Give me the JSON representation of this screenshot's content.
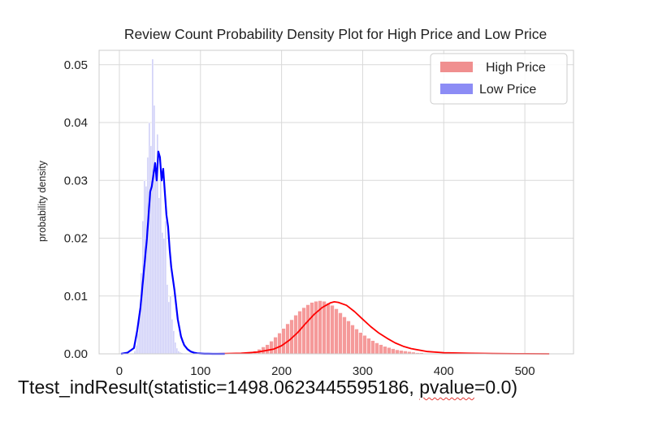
{
  "chart_data": {
    "type": "histogram-density",
    "title": "Review Count Probability Density Plot for High Price and Low Price",
    "xlabel": "",
    "ylabel": "probability density",
    "xlim": [
      -25,
      560
    ],
    "ylim": [
      0,
      0.0525
    ],
    "xticks": [
      0,
      100,
      200,
      300,
      400,
      500
    ],
    "yticks": [
      0.0,
      0.01,
      0.02,
      0.03,
      0.04,
      0.05
    ],
    "ytick_labels": [
      "0.00",
      "0.01",
      "0.02",
      "0.03",
      "0.04",
      "0.05"
    ],
    "grid": true,
    "legend_position": "top-right",
    "series": [
      {
        "name": "High Price",
        "color": "#ff0000",
        "bar_color": "#f59a9a",
        "bins": {
          "start": 120,
          "width": 5
        },
        "bar_heights": [
          5e-05,
          5e-05,
          0.0001,
          0.0001,
          0.0001,
          0.0001,
          0.0002,
          0.0003,
          0.0003,
          0.0005,
          0.0008,
          0.0012,
          0.0016,
          0.0022,
          0.0029,
          0.0036,
          0.0044,
          0.0052,
          0.0059,
          0.0067,
          0.0074,
          0.008,
          0.0085,
          0.0089,
          0.0091,
          0.0092,
          0.0091,
          0.0088,
          0.0084,
          0.0078,
          0.0071,
          0.0064,
          0.0057,
          0.005,
          0.0043,
          0.0037,
          0.0032,
          0.0027,
          0.0023,
          0.0019,
          0.0016,
          0.0013,
          0.0011,
          0.0009,
          0.0007,
          0.0006,
          0.0005,
          0.0004,
          0.0003,
          0.0002,
          0.0002,
          0.0001,
          0.0001,
          0.0001,
          8e-05,
          6e-05,
          5e-05,
          5e-05,
          4e-05,
          3e-05,
          3e-05,
          2e-05,
          2e-05,
          2e-05,
          2e-05,
          2e-05,
          2e-05,
          2e-05,
          2e-05,
          2e-05,
          2e-05,
          2e-05,
          1e-05,
          1e-05,
          1e-05,
          1e-05,
          1e-05,
          1e-05,
          1e-05,
          1e-05,
          1e-05,
          1e-05
        ],
        "kde_x": [
          115,
          150,
          170,
          190,
          200,
          210,
          220,
          230,
          240,
          250,
          260,
          265,
          270,
          280,
          290,
          300,
          310,
          320,
          330,
          340,
          350,
          360,
          380,
          400,
          430,
          460,
          500,
          530
        ],
        "kde_y": [
          0.0,
          0.0001,
          0.0003,
          0.0008,
          0.0014,
          0.0024,
          0.0037,
          0.0053,
          0.0068,
          0.008,
          0.0088,
          0.009,
          0.0089,
          0.0084,
          0.0073,
          0.006,
          0.0047,
          0.0036,
          0.0027,
          0.0019,
          0.0013,
          0.0009,
          0.0004,
          0.0002,
          0.0001,
          4e-05,
          1e-05,
          0.0
        ]
      },
      {
        "name": "Low Price",
        "color": "#0000ff",
        "bar_color": "#c9c9f7",
        "bins": {
          "start": 18,
          "width": 2
        },
        "bar_heights": [
          0.0005,
          0.0015,
          0.0035,
          0.007,
          0.014,
          0.023,
          0.03,
          0.029,
          0.034,
          0.04,
          0.036,
          0.051,
          0.043,
          0.033,
          0.038,
          0.027,
          0.03,
          0.021,
          0.02,
          0.023,
          0.012,
          0.009,
          0.01,
          0.006,
          0.004,
          0.002,
          0.001,
          0.0005,
          0.0003,
          0.0002
        ],
        "kde_x": [
          2,
          10,
          18,
          22,
          26,
          30,
          34,
          36,
          38,
          40,
          42,
          44,
          46,
          48,
          50,
          52,
          54,
          56,
          58,
          60,
          62,
          64,
          66,
          68,
          70,
          72,
          74,
          76,
          78,
          80,
          84,
          88,
          92,
          96,
          100,
          105,
          110,
          115,
          120,
          125,
          130
        ],
        "kde_y": [
          0.0,
          0.0002,
          0.001,
          0.004,
          0.008,
          0.014,
          0.02,
          0.024,
          0.028,
          0.029,
          0.031,
          0.033,
          0.03,
          0.035,
          0.034,
          0.03,
          0.032,
          0.028,
          0.024,
          0.022,
          0.018,
          0.015,
          0.013,
          0.011,
          0.0085,
          0.006,
          0.0045,
          0.003,
          0.0022,
          0.0015,
          0.0008,
          0.0004,
          0.0002,
          0.0001,
          5e-05,
          2e-05,
          1e-05,
          5e-06,
          2e-06,
          1e-06,
          0.0
        ]
      }
    ]
  },
  "footer": {
    "result_prefix": "Ttest_indResult(statistic=1498.0623445595186, ",
    "result_pvalue": "pvalue",
    "result_suffix": "=0.0)"
  }
}
